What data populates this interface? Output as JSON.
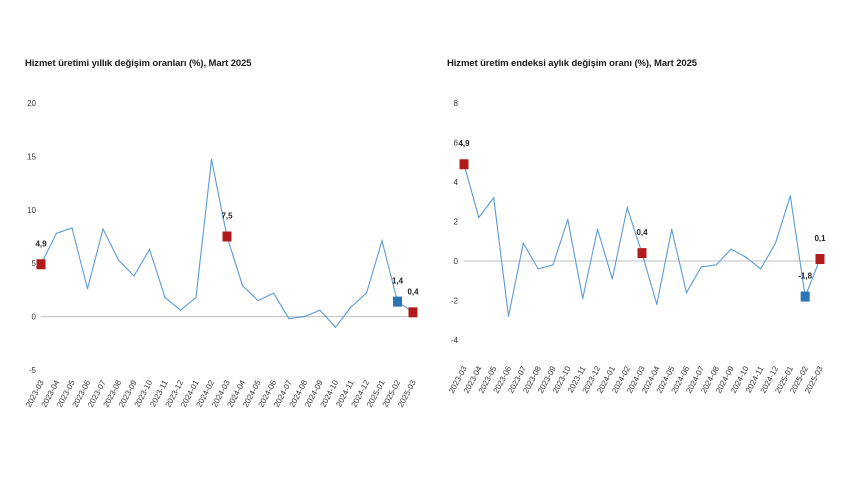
{
  "colors": {
    "line": "#5b9bd5",
    "marker_red": "#b01c1c",
    "marker_blue": "#2e75b6",
    "zero_line": "#bfbfbf"
  },
  "chart_data": [
    {
      "type": "line",
      "title": "Hizmet üretimi yıllık değişim oranları (%), Mart 2025",
      "xlabel": "",
      "ylabel": "",
      "ylim": [
        -5,
        20
      ],
      "yticks": [
        "-5",
        "0",
        "5",
        "10",
        "15",
        "20"
      ],
      "ytick_values": [
        -5,
        0,
        5,
        10,
        15,
        20
      ],
      "grid": false,
      "categories": [
        "2023-03",
        "2023-04",
        "2023-05",
        "2023-06",
        "2023-07",
        "2023-08",
        "2023-09",
        "2023-10",
        "2023-11",
        "2023-12",
        "2024-01",
        "2024-02",
        "2024-03",
        "2024-04",
        "2024-05",
        "2024-06",
        "2024-07",
        "2024-08",
        "2024-09",
        "2024-10",
        "2024-11",
        "2024-12",
        "2025-01",
        "2025-02",
        "2025-03"
      ],
      "values": [
        4.9,
        7.8,
        8.3,
        2.6,
        8.2,
        5.3,
        3.8,
        6.3,
        1.8,
        0.6,
        1.8,
        14.7,
        7.5,
        2.9,
        1.5,
        2.2,
        -0.2,
        0.0,
        0.6,
        -1.0,
        0.9,
        2.2,
        7.1,
        1.4,
        0.4
      ],
      "highlights": [
        {
          "index": 0,
          "label": "4,9",
          "color": "red"
        },
        {
          "index": 12,
          "label": "7,5",
          "color": "red"
        },
        {
          "index": 23,
          "label": "1,4",
          "color": "blue"
        },
        {
          "index": 24,
          "label": "0,4",
          "color": "red"
        }
      ]
    },
    {
      "type": "line",
      "title": "Hizmet üretim endeksi aylık değişim oranı (%), Mart 2025",
      "xlabel": "",
      "ylabel": "",
      "ylim": [
        -4,
        8
      ],
      "yticks": [
        "-4",
        "-2",
        "0",
        "2",
        "4",
        "6",
        "8"
      ],
      "ytick_values": [
        -4,
        -2,
        0,
        2,
        4,
        6,
        8
      ],
      "grid": false,
      "categories": [
        "2023-03",
        "2023-04",
        "2023-05",
        "2023-06",
        "2023-07",
        "2023-08",
        "2023-09",
        "2023-10",
        "2023-11",
        "2023-12",
        "2024-01",
        "2024-02",
        "2024-03",
        "2024-04",
        "2024-05",
        "2024-06",
        "2024-07",
        "2024-08",
        "2024-09",
        "2024-10",
        "2024-11",
        "2024-12",
        "2025-01",
        "2025-02",
        "2025-03"
      ],
      "values": [
        4.9,
        2.2,
        3.2,
        -2.8,
        0.9,
        -0.4,
        -0.2,
        2.1,
        -1.9,
        1.6,
        -0.9,
        2.7,
        0.4,
        -2.2,
        1.6,
        -1.6,
        -0.3,
        -0.2,
        0.6,
        0.2,
        -0.4,
        0.9,
        3.3,
        -1.8,
        0.1
      ],
      "highlights": [
        {
          "index": 0,
          "label": "4,9",
          "color": "red"
        },
        {
          "index": 12,
          "label": "0,4",
          "color": "red"
        },
        {
          "index": 23,
          "label": "-1,8",
          "color": "blue"
        },
        {
          "index": 24,
          "label": "0,1",
          "color": "red"
        }
      ]
    }
  ]
}
